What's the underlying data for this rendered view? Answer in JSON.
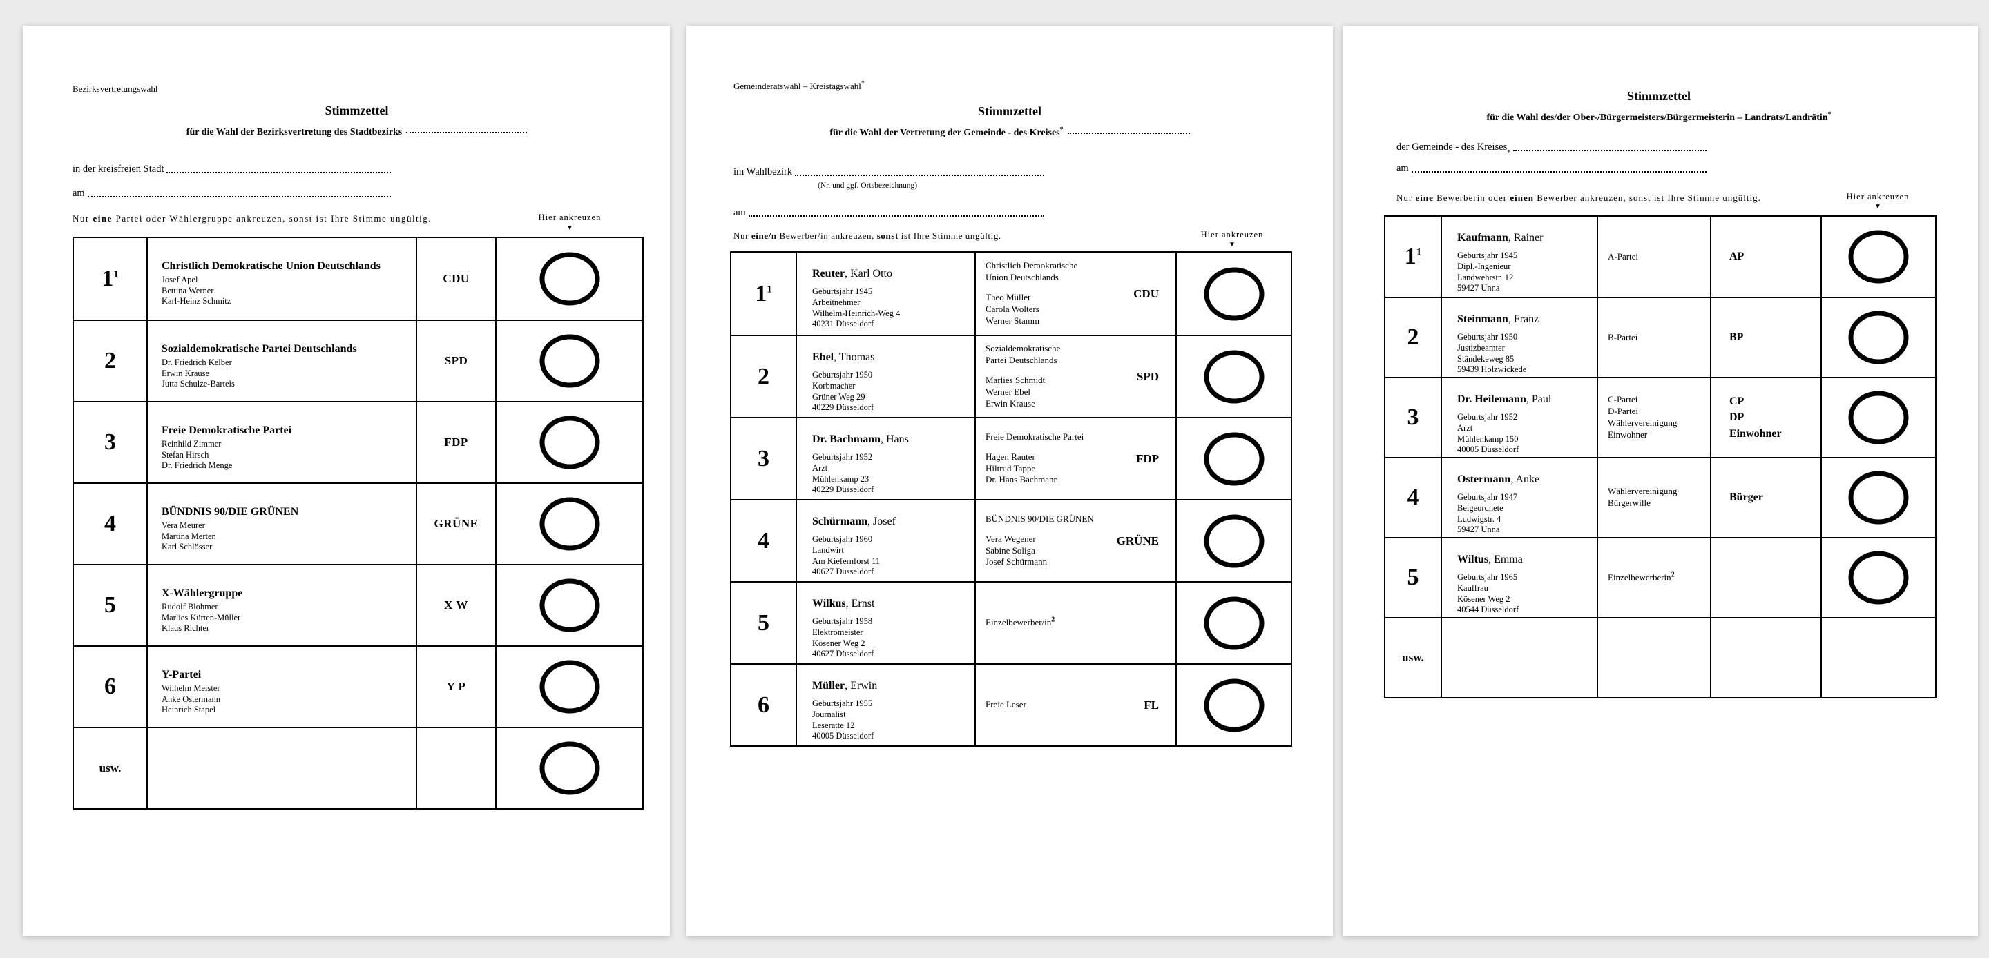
{
  "page": {
    "background": "#ebebeb",
    "paper": "#ffffff",
    "ink": "#000000"
  },
  "ballots": [
    {
      "name": "bezirksvertretungswahl",
      "corner_label": "Bezirksvertretungswahl",
      "corner_sup": "",
      "title": "Stimmzettel",
      "subtitle": "für die Wahl der Bezirksvertretung des Stadtbezirks",
      "subtitle_sup": "",
      "fields": [
        {
          "label": "in der kreisfreien Stadt",
          "sup": "",
          "note": ""
        },
        {
          "label": "am",
          "sup": "",
          "note": ""
        }
      ],
      "instruction": [
        {
          "t": "Nur ",
          "b": 0
        },
        {
          "t": "eine",
          "b": 1
        },
        {
          "t": " Partei oder Wählergruppe ankreuzen, sonst ist Ihre Stimme ungültig.",
          "b": 0
        }
      ],
      "mark_header": "Hier ankreuzen",
      "mark_arrow": "▼",
      "rows": [
        {
          "number": "1",
          "number_sup": "1",
          "party_name": "Christlich Demokratische Union Deutschlands",
          "candidates": [
            "Josef Apel",
            "Bettina Werner",
            "Karl-Heinz Schmitz"
          ],
          "short": "CDU",
          "circle": true
        },
        {
          "number": "2",
          "number_sup": "",
          "party_name": "Sozialdemokratische Partei Deutschlands",
          "candidates": [
            "Dr. Friedrich Kelber",
            "Erwin Krause",
            "Jutta Schulze-Bartels"
          ],
          "short": "SPD",
          "circle": true
        },
        {
          "number": "3",
          "number_sup": "",
          "party_name": "Freie Demokratische Partei",
          "candidates": [
            "Reinhild Zimmer",
            "Stefan Hirsch",
            "Dr. Friedrich Menge"
          ],
          "short": "FDP",
          "circle": true
        },
        {
          "number": "4",
          "number_sup": "",
          "party_name": "BÜNDNIS 90/DIE GRÜNEN",
          "candidates": [
            "Vera Meurer",
            "Martina Merten",
            "Karl Schlösser"
          ],
          "short": "GRÜNE",
          "circle": true
        },
        {
          "number": "5",
          "number_sup": "",
          "party_name": "X-Wählergruppe",
          "candidates": [
            "Rudolf Blohmer",
            "Marlies Kürten-Müller",
            "Klaus Richter"
          ],
          "short": "X W",
          "circle": true
        },
        {
          "number": "6",
          "number_sup": "",
          "party_name": "Y-Partei",
          "candidates": [
            "Wilhelm Meister",
            "Anke Ostermann",
            "Heinrich Stapel"
          ],
          "short": "Y P",
          "circle": true
        },
        {
          "number": "usw.",
          "number_sup": "",
          "party_name": "",
          "candidates": [],
          "short": "",
          "circle": true,
          "etc": true
        }
      ]
    },
    {
      "name": "gemeinderatswahl-kreistagswahl",
      "corner_label": "Gemeinderatswahl – Kreistagswahl",
      "corner_sup": "*",
      "title": "Stimmzettel",
      "subtitle": "für die Wahl der Vertretung der Gemeinde - des Kreises",
      "subtitle_sup": "*",
      "fields": [
        {
          "label": "im Wahlbezirk",
          "sup": "",
          "note": "(Nr. und ggf. Ortsbezeichnung)"
        },
        {
          "label": "am",
          "sup": "",
          "note": ""
        }
      ],
      "instruction": [
        {
          "t": "Nur ",
          "b": 0
        },
        {
          "t": "eine/n",
          "b": 1
        },
        {
          "t": " Bewerber/in ankreuzen, ",
          "b": 0
        },
        {
          "t": "sonst",
          "b": 1
        },
        {
          "t": " ist Ihre Stimme ungültig.",
          "b": 0
        }
      ],
      "mark_header": "Hier ankreuzen",
      "mark_arrow": "▼",
      "rows": [
        {
          "number": "1",
          "number_sup": "1",
          "name_bold": "Reuter",
          "name_rest": ", Karl Otto",
          "details": [
            "Geburtsjahr 1945",
            "Arbeitnehmer",
            "Wilhelm-Heinrich-Weg 4",
            "40231 Düsseldorf"
          ],
          "party_lines": [
            "Christlich Demokratische",
            "Union Deutschlands"
          ],
          "party_sup": "",
          "people": [
            "Theo Müller",
            "Carola Wolters",
            "Werner Stamm"
          ],
          "short": "CDU",
          "circle": true
        },
        {
          "number": "2",
          "number_sup": "",
          "name_bold": "Ebel",
          "name_rest": ", Thomas",
          "details": [
            "Geburtsjahr 1950",
            "Korbmacher",
            "Grüner Weg 29",
            "40229 Düsseldorf"
          ],
          "party_lines": [
            "Sozialdemokratische",
            "Partei Deutschlands"
          ],
          "party_sup": "",
          "people": [
            "Marlies Schmidt",
            "Werner Ebel",
            "Erwin Krause"
          ],
          "short": "SPD",
          "circle": true
        },
        {
          "number": "3",
          "number_sup": "",
          "name_bold": "Dr. Bachmann",
          "name_rest": ", Hans",
          "details": [
            "Geburtsjahr 1952",
            "Arzt",
            "Mühlenkamp 23",
            "40229 Düsseldorf"
          ],
          "party_lines": [
            "Freie Demokratische Partei"
          ],
          "party_sup": "",
          "people": [
            "Hagen Rauter",
            "Hiltrud Tappe",
            "Dr. Hans Bachmann"
          ],
          "short": "FDP",
          "circle": true
        },
        {
          "number": "4",
          "number_sup": "",
          "name_bold": "Schürmann",
          "name_rest": ", Josef",
          "details": [
            "Geburtsjahr 1960",
            "Landwirt",
            "Am Kiefernforst 11",
            "40627 Düsseldorf"
          ],
          "party_lines": [
            "BÜNDNIS 90/DIE GRÜNEN"
          ],
          "party_sup": "",
          "people": [
            "Vera Wegener",
            "Sabine Soliga",
            "Josef Schürmann"
          ],
          "short": "GRÜNE",
          "circle": true
        },
        {
          "number": "5",
          "number_sup": "",
          "name_bold": "Wilkus",
          "name_rest": ", Ernst",
          "details": [
            "Geburtsjahr 1958",
            "Elektromeister",
            "Kösener Weg 2",
            "40627 Düsseldorf"
          ],
          "party_lines": [
            "Einzelbewerber/in"
          ],
          "party_sup": "2",
          "people": [],
          "short": "",
          "circle": true
        },
        {
          "number": "6",
          "number_sup": "",
          "name_bold": "Müller",
          "name_rest": ", Erwin",
          "details": [
            "Geburtsjahr 1955",
            "Journalist",
            "Leseratte 12",
            "40005 Düsseldorf"
          ],
          "party_lines": [
            "Freie Leser"
          ],
          "party_sup": "",
          "people": [],
          "short": "FL",
          "circle": true
        }
      ]
    },
    {
      "name": "buergermeister-landrat",
      "corner_label": "",
      "corner_sup": "",
      "title": "Stimmzettel",
      "subtitle": "für die Wahl des/der Ober-/Bürgermeisters/Bürgermeisterin – Landrats/Landrätin",
      "subtitle_sup": "*",
      "fields": [
        {
          "label": "der Gemeinde - des Kreises",
          "sup": "*",
          "note": ""
        },
        {
          "label": "am",
          "sup": "",
          "note": ""
        }
      ],
      "instruction": [
        {
          "t": "Nur ",
          "b": 0
        },
        {
          "t": "eine",
          "b": 1
        },
        {
          "t": " Bewerberin oder ",
          "b": 0
        },
        {
          "t": "einen",
          "b": 1
        },
        {
          "t": " Bewerber ankreuzen, sonst ist Ihre Stimme ungültig.",
          "b": 0
        }
      ],
      "mark_header": "Hier ankreuzen",
      "mark_arrow": "▼",
      "rows": [
        {
          "number": "1",
          "number_sup": "1",
          "name_bold": "Kaufmann",
          "name_rest": ", Rainer",
          "details": [
            "Geburtsjahr 1945",
            "Dipl.-Ingenieur",
            "Landwehrstr. 12",
            "59427 Unna"
          ],
          "party_lines": [
            "A-Partei"
          ],
          "party_sup": "",
          "shorts": [
            "AP"
          ],
          "circle": true
        },
        {
          "number": "2",
          "number_sup": "",
          "name_bold": "Steinmann",
          "name_rest": ", Franz",
          "details": [
            "Geburtsjahr 1950",
            "Justizbeamter",
            "Ständekeweg 85",
            "59439 Holzwickede"
          ],
          "party_lines": [
            "B-Partei"
          ],
          "party_sup": "",
          "shorts": [
            "BP"
          ],
          "circle": true
        },
        {
          "number": "3",
          "number_sup": "",
          "name_bold": "Dr. Heilemann",
          "name_rest": ", Paul",
          "details": [
            "Geburtsjahr 1952",
            "Arzt",
            "Mühlenkamp 150",
            "40005 Düsseldorf"
          ],
          "party_lines": [
            "C-Partei",
            "D-Partei",
            "Wählervereinigung",
            "Einwohner"
          ],
          "party_sup": "",
          "shorts": [
            "CP",
            "DP",
            "Einwohner"
          ],
          "circle": true
        },
        {
          "number": "4",
          "number_sup": "",
          "name_bold": "Ostermann",
          "name_rest": ", Anke",
          "details": [
            "Geburtsjahr 1947",
            "Beigeordnete",
            "Ludwigstr. 4",
            "59427 Unna"
          ],
          "party_lines": [
            "Wählervereinigung",
            "Bürgerwille"
          ],
          "party_sup": "",
          "shorts": [
            "Bürger"
          ],
          "circle": true
        },
        {
          "number": "5",
          "number_sup": "",
          "name_bold": "Wiltus",
          "name_rest": ", Emma",
          "details": [
            "Geburtsjahr 1965",
            "Kauffrau",
            "Kösener Weg 2",
            "40544 Düsseldorf"
          ],
          "party_lines": [
            "Einzelbewerberin"
          ],
          "party_sup": "2",
          "shorts": [],
          "circle": true
        },
        {
          "number": "usw.",
          "number_sup": "",
          "name_bold": "",
          "name_rest": "",
          "details": [],
          "party_lines": [],
          "party_sup": "",
          "shorts": [],
          "circle": false,
          "etc": true
        }
      ]
    }
  ]
}
